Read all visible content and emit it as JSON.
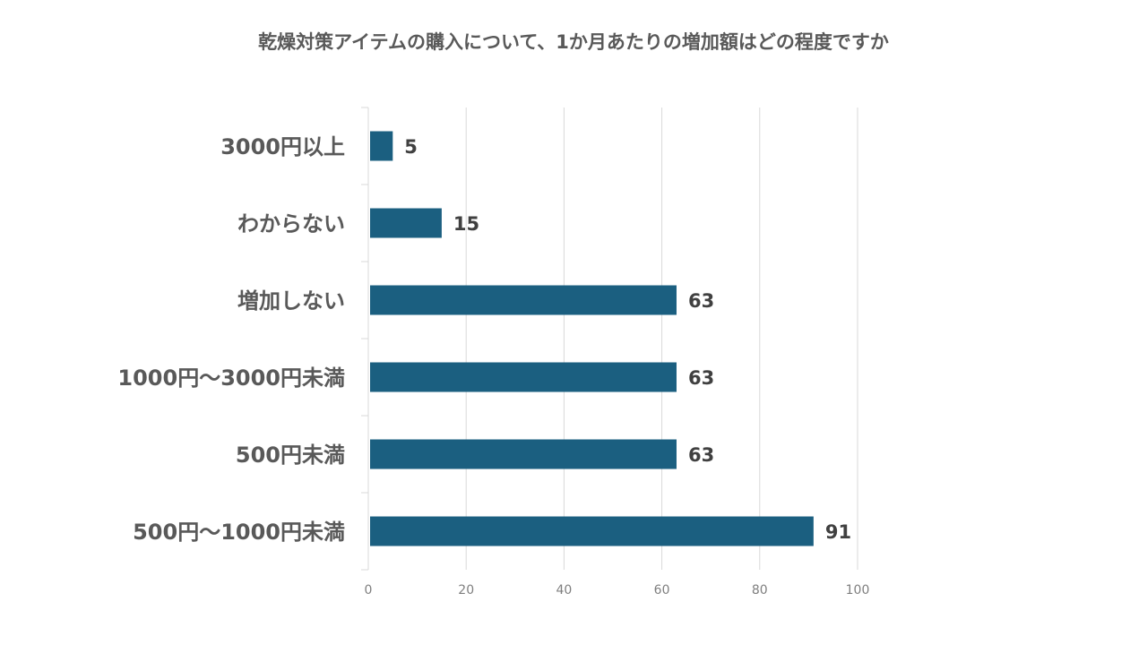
{
  "chart_data": {
    "type": "bar",
    "orientation": "horizontal",
    "title": "乾燥対策アイテムの購入について、1か月あたりの増加額はどの程度ですか",
    "categories": [
      "3000円以上",
      "わからない",
      "増加しない",
      "1000円～3000円未満",
      "500円未満",
      "500円～1000円未満"
    ],
    "values": [
      5,
      15,
      63,
      63,
      63,
      91
    ],
    "data_labels": [
      "5",
      "15",
      "63",
      "63",
      "63",
      "91"
    ],
    "xlim": [
      0,
      100
    ],
    "xticks": [
      0,
      20,
      40,
      60,
      80,
      100
    ],
    "xtick_labels": [
      "0",
      "20",
      "40",
      "60",
      "80",
      "100"
    ],
    "xlabel": "",
    "ylabel": "",
    "grid": true,
    "legend": "none",
    "bar_color": "#1b5f80"
  }
}
